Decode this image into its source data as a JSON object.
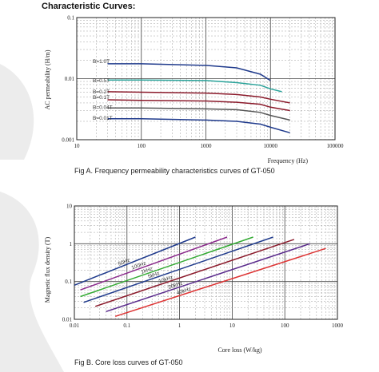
{
  "page": {
    "heading": "Characteristic Curves:",
    "accent_gray": "#e6e6e6"
  },
  "chart_data": [
    {
      "type": "line",
      "id": "A",
      "caption": "Fig A. Frequency permeability characteristics curves of GT-050",
      "xlabel": "Frequency (Hz)",
      "ylabel": "AC permeability (H/m)",
      "xscale": "log",
      "yscale": "log",
      "xlim": [
        10,
        100000
      ],
      "ylim": [
        0.001,
        0.1
      ],
      "xticks": [
        10,
        100,
        1000,
        10000,
        100000
      ],
      "xtick_labels": [
        "10",
        "100",
        "1000",
        "10000",
        "100000"
      ],
      "yticks": [
        0.001,
        0.01,
        0.1
      ],
      "ytick_labels": [
        "0.001",
        "0.01",
        "0.1"
      ],
      "grid": true,
      "series": [
        {
          "name": "B=1.0T",
          "color": "#1f3a8c",
          "x": [
            30,
            100,
            1000,
            3000,
            7000,
            10000
          ],
          "y": [
            0.0175,
            0.0175,
            0.0165,
            0.015,
            0.0118,
            0.0093
          ]
        },
        {
          "name": "B=0.5T",
          "color": "#2aa39a",
          "x": [
            30,
            100,
            1000,
            3000,
            7000,
            10000,
            15000
          ],
          "y": [
            0.0095,
            0.0095,
            0.0093,
            0.0086,
            0.0078,
            0.0068,
            0.0061
          ]
        },
        {
          "name": "B=0.2T",
          "color": "#8b1a2b",
          "x": [
            30,
            100,
            1000,
            3000,
            7000,
            10000,
            20000
          ],
          "y": [
            0.0061,
            0.006,
            0.0058,
            0.0055,
            0.005,
            0.0046,
            0.004
          ]
        },
        {
          "name": "B=0.1T",
          "color": "#8b1a2b",
          "x": [
            30,
            100,
            1000,
            3000,
            7000,
            10000,
            20000
          ],
          "y": [
            0.0045,
            0.0044,
            0.0043,
            0.0041,
            0.0038,
            0.0034,
            0.003
          ]
        },
        {
          "name": "B=0.04T",
          "color": "#555555",
          "x": [
            30,
            100,
            1000,
            3000,
            7000,
            10000,
            20000
          ],
          "y": [
            0.0033,
            0.0033,
            0.0032,
            0.0031,
            0.0028,
            0.0025,
            0.0021
          ]
        },
        {
          "name": "B=0.01T",
          "color": "#1f3a8c",
          "x": [
            30,
            100,
            1000,
            3000,
            7000,
            10000,
            20000
          ],
          "y": [
            0.0022,
            0.0022,
            0.0021,
            0.002,
            0.0018,
            0.0016,
            0.0013
          ]
        }
      ]
    },
    {
      "type": "line",
      "id": "B",
      "caption": "Fig B. Core loss curves of GT-050",
      "xlabel": "Core loss (W/kg)",
      "ylabel": "Magnetic flux density (T)",
      "xscale": "log",
      "yscale": "log",
      "xlim": [
        0.01,
        1000
      ],
      "ylim": [
        0.01,
        10
      ],
      "xticks": [
        0.01,
        0.1,
        1,
        10,
        100,
        1000
      ],
      "xtick_labels": [
        "0.01",
        "0.1",
        "1",
        "10",
        "100",
        "1000"
      ],
      "yticks": [
        0.01,
        0.1,
        1,
        10
      ],
      "ytick_labels": [
        "0.01",
        "0.1",
        "1",
        "10"
      ],
      "grid": true,
      "series": [
        {
          "name": "50Hz",
          "color": "#1f3a8c",
          "x": [
            0.01,
            2
          ],
          "y": [
            0.08,
            1.5
          ]
        },
        {
          "name": "100Hz",
          "color": "#8b2a8c",
          "x": [
            0.013,
            8
          ],
          "y": [
            0.06,
            1.5
          ]
        },
        {
          "name": "1kHz",
          "color": "#33aa33",
          "x": [
            0.013,
            25
          ],
          "y": [
            0.04,
            1.5
          ]
        },
        {
          "name": "5kHz",
          "color": "#1f3a8c",
          "x": [
            0.015,
            60
          ],
          "y": [
            0.028,
            1.5
          ]
        },
        {
          "name": "10kHz",
          "color": "#8b1a2b",
          "x": [
            0.025,
            150
          ],
          "y": [
            0.022,
            1.3
          ]
        },
        {
          "name": "20kHz",
          "color": "#5a2a8c",
          "x": [
            0.04,
            300
          ],
          "y": [
            0.016,
            1.0
          ]
        },
        {
          "name": "40kHz",
          "color": "#dd3333",
          "x": [
            0.06,
            600
          ],
          "y": [
            0.012,
            0.75
          ]
        }
      ]
    }
  ]
}
